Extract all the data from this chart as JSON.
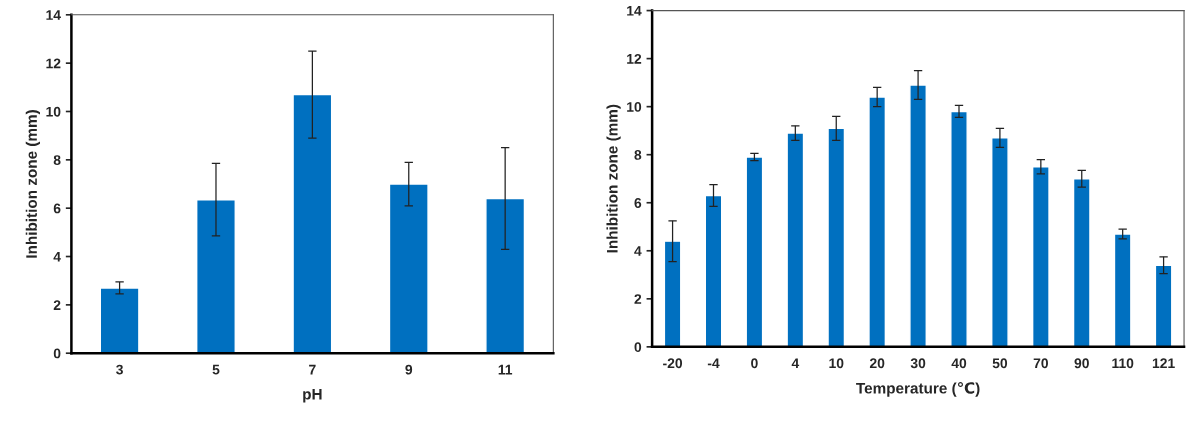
{
  "chart_data": [
    {
      "type": "bar",
      "xlabel": "pH",
      "ylabel": "Inhibition zone (mm)",
      "categories": [
        "3",
        "5",
        "7",
        "9",
        "11"
      ],
      "color": "#0070c0",
      "values": [
        2.7,
        6.35,
        10.7,
        7.0,
        6.4
      ],
      "errors": [
        0.25,
        1.5,
        1.8,
        0.9,
        2.1
      ],
      "ylim": [
        0,
        14
      ],
      "yticks": [
        0,
        2,
        4,
        6,
        8,
        10,
        12,
        14
      ],
      "grid": false,
      "legend": false
    },
    {
      "type": "bar",
      "xlabel": "Temperature (℃)",
      "ylabel": "Inhibition zone (mm)",
      "categories": [
        "-20",
        "-4",
        "0",
        "4",
        "10",
        "20",
        "30",
        "40",
        "50",
        "70",
        "90",
        "110",
        "121"
      ],
      "color": "#0070c0",
      "values": [
        4.4,
        6.3,
        7.9,
        8.9,
        9.1,
        10.4,
        10.9,
        9.8,
        8.7,
        7.5,
        7.0,
        4.7,
        3.4
      ],
      "errors": [
        0.85,
        0.45,
        0.15,
        0.3,
        0.5,
        0.4,
        0.6,
        0.25,
        0.4,
        0.3,
        0.35,
        0.2,
        0.35
      ],
      "ylim": [
        0,
        14
      ],
      "yticks": [
        0,
        2,
        4,
        6,
        8,
        10,
        12,
        14
      ],
      "grid": false,
      "legend": false
    }
  ]
}
